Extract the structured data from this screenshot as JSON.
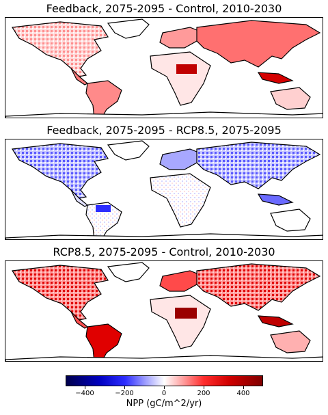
{
  "panels": [
    {
      "title": "Feedback, 2075-2095 - Control, 2010-2030",
      "tone": "increase"
    },
    {
      "title": "Feedback, 2075-2095 - RCP8.5, 2075-2095",
      "tone": "decrease"
    },
    {
      "title": "RCP8.5, 2075-2095 - Control, 2010-2030",
      "tone": "strong-increase"
    }
  ],
  "colorbar": {
    "label": "NPP (gC/m^2/yr)",
    "range": [
      -500,
      500
    ],
    "ticks": [
      "−400",
      "−200",
      "0",
      "200",
      "400"
    ],
    "tick_values": [
      -400,
      -200,
      0,
      200,
      400
    ],
    "colormap": "seismic",
    "colors": {
      "negative_end": "#00004c",
      "zero": "#ffffff",
      "positive_end": "#800000"
    }
  }
}
